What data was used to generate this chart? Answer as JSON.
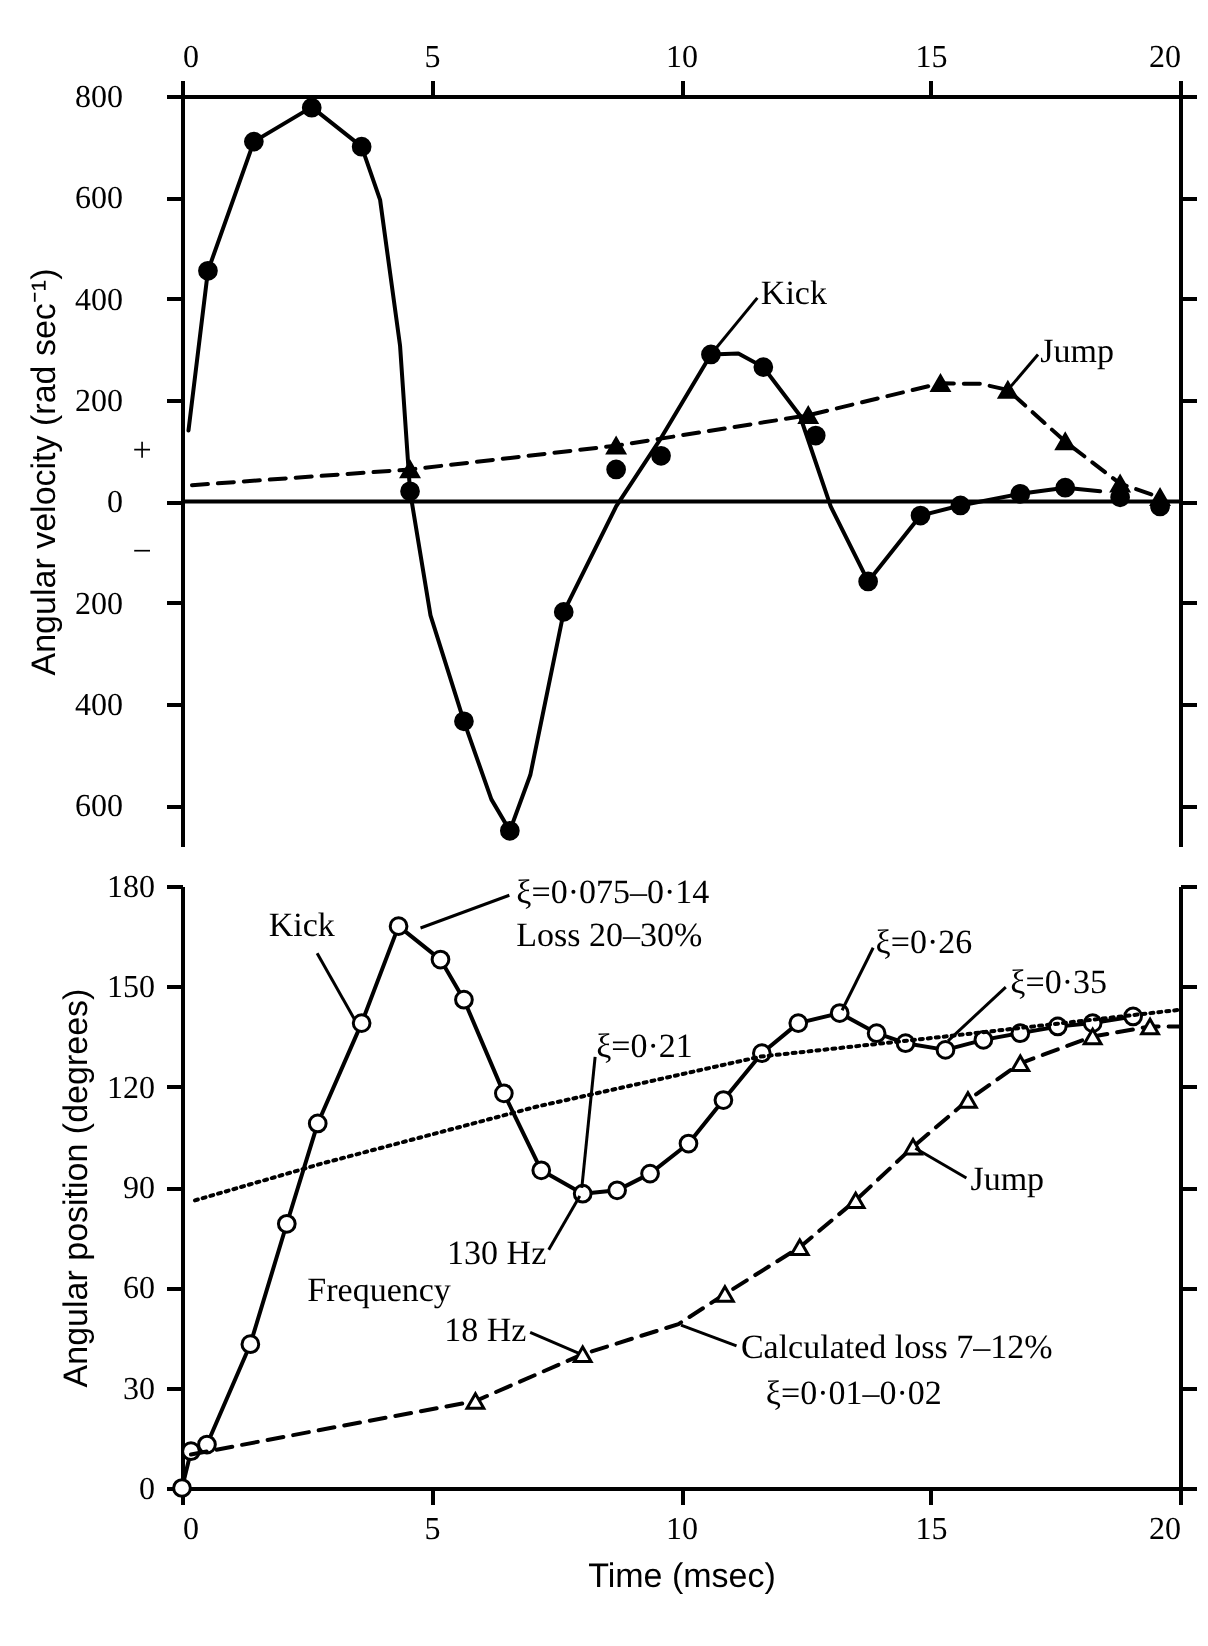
{
  "chart_data": [
    {
      "type": "line",
      "ylabel": "Angular velocity (rad sec⁻¹)",
      "xlim": [
        0,
        20
      ],
      "xticks": [
        0,
        5,
        10,
        15,
        20
      ],
      "ylim": [
        -680,
        800
      ],
      "yticks": [
        800,
        600,
        400,
        200,
        0,
        {
          "value": -200,
          "label": "200"
        },
        {
          "value": -400,
          "label": "400"
        },
        {
          "value": -600,
          "label": "600"
        }
      ],
      "grid": false,
      "ref_lines": [
        {
          "axis": "y",
          "value": 0,
          "color": "#000000"
        }
      ],
      "annotations": [
        "+",
        "−",
        {
          "text": "Kick",
          "x": 10.6,
          "y": 290
        },
        {
          "text": "Jump",
          "x": 16.55,
          "y": 220
        }
      ],
      "series": [
        {
          "type": "line",
          "color": "#000000",
          "line_style": "solid",
          "marker": "none",
          "x": [
            0.13,
            0.52,
            1.44,
            2.6,
            3.6,
            3.97,
            4.37,
            4.57,
            4.98,
            5.65,
            6.2,
            6.57,
            6.98,
            7.65,
            8.7,
            9.6,
            10.6,
            11.15,
            11.65,
            12.38,
            13.0,
            13.75,
            14.8,
            15.6,
            16.8,
            17.7,
            18.4
          ],
          "values": [
            140,
            455,
            710,
            778,
            700,
            595,
            307,
            20,
            -225,
            -434,
            -588,
            -650,
            -540,
            -218,
            -10,
            125,
            290,
            292,
            265,
            170,
            -10,
            -158,
            -28,
            -8,
            15,
            27,
            20
          ]
        },
        {
          "type": "scatter",
          "color": "#000000",
          "marker": "circle",
          "x": [
            0.52,
            1.44,
            2.6,
            3.6,
            4.57,
            5.65,
            6.57,
            7.65,
            8.7,
            9.6,
            10.6,
            11.65,
            12.7,
            13.75,
            14.8,
            15.6,
            16.8,
            17.7,
            18.8,
            19.6
          ],
          "values": [
            455,
            710,
            777,
            700,
            20,
            -434,
            -650,
            -218,
            63,
            90,
            290,
            265,
            130,
            -158,
            -28,
            -8,
            15,
            27,
            8,
            -10
          ]
        },
        {
          "type": "line",
          "color": "#000000",
          "line_style": "dashed",
          "marker": "none",
          "x": [
            0.2,
            4.57,
            8.7,
            12.55,
            15.2,
            16.0,
            16.55,
            17.7,
            18.8,
            19.6
          ],
          "values": [
            32,
            63,
            110,
            170,
            233,
            232,
            220,
            118,
            35,
            8
          ]
        },
        {
          "type": "scatter",
          "color": "#000000",
          "marker": "triangle",
          "x": [
            4.57,
            8.7,
            12.55,
            15.2,
            16.55,
            17.7,
            18.8,
            19.6
          ],
          "values": [
            63,
            110,
            170,
            233,
            220,
            118,
            35,
            8
          ]
        }
      ]
    },
    {
      "type": "line",
      "xlabel": "Time (msec)",
      "ylabel": "Angular position (degrees)",
      "xlim": [
        0,
        20
      ],
      "xticks": [
        0,
        5,
        10,
        15,
        20
      ],
      "ylim": [
        0,
        180
      ],
      "yticks": [
        0,
        30,
        60,
        90,
        120,
        150,
        180
      ],
      "grid": false,
      "annotations": [
        {
          "text": "Kick",
          "x": 3.5,
          "y": 139
        },
        {
          "text": "ξ=0·075–0·14",
          "x": 4.7,
          "y": 167
        },
        "Loss 20–30%",
        {
          "text": "ξ=0·21",
          "x": 8.0,
          "y": 88
        },
        {
          "text": "130 Hz",
          "x": 8.0,
          "y": 88
        },
        "Frequency",
        {
          "text": "18 Hz",
          "x": 8.0,
          "y": 40
        },
        {
          "text": "Calculated loss 7–12%",
          "x": 9.95,
          "y": 49
        },
        "ξ=0·01–0·02",
        {
          "text": "ξ=0·26",
          "x": 13.2,
          "y": 142
        },
        {
          "text": "ξ=0·35",
          "x": 15.3,
          "y": 133
        },
        {
          "text": "Jump",
          "x": 14.65,
          "y": 102
        }
      ],
      "series": [
        {
          "type": "line",
          "color": "#000000",
          "line_style": "solid",
          "marker": "circle",
          "x": [
            0,
            0.18,
            0.5,
            1.37,
            2.1,
            2.72,
            3.6,
            4.34,
            5.18,
            5.65,
            6.45,
            7.2,
            8.03,
            8.72,
            9.38,
            10.15,
            10.85,
            11.62,
            12.35,
            13.18,
            13.92,
            14.5,
            15.3,
            16.06,
            16.8,
            17.55,
            18.25,
            19.06
          ],
          "values": [
            0,
            11,
            13,
            43,
            79,
            109,
            139,
            168,
            158,
            146,
            118,
            95,
            88,
            89,
            94,
            103,
            116,
            130,
            139,
            142,
            136,
            133,
            131,
            134,
            136,
            138,
            139,
            141
          ]
        },
        {
          "type": "line",
          "color": "#000000",
          "line_style": "dotted",
          "marker": "none",
          "x": [
            0.26,
            2.8,
            7.1,
            11.6,
            15.3,
            20
          ],
          "values": [
            86,
            97,
            114,
            129,
            135,
            143
          ]
        },
        {
          "type": "line",
          "color": "#000000",
          "line_style": "dashed",
          "marker": "none",
          "x": [
            0.18,
            3.0,
            5.88,
            8.03,
            9.95,
            10.88,
            12.38,
            13.5,
            14.65,
            15.75,
            16.8,
            18.25,
            19.4,
            20
          ],
          "values": [
            10,
            18,
            26,
            40,
            49,
            58,
            72,
            86,
            102,
            116,
            127,
            135,
            138,
            138
          ]
        },
        {
          "type": "scatter",
          "color": "#000000",
          "marker": "triangle",
          "x": [
            5.88,
            8.03,
            10.88,
            12.38,
            13.5,
            14.65,
            15.75,
            16.8,
            18.25,
            19.4
          ],
          "values": [
            26,
            40,
            58,
            72,
            86,
            102,
            116,
            127,
            135,
            138
          ]
        }
      ]
    }
  ]
}
